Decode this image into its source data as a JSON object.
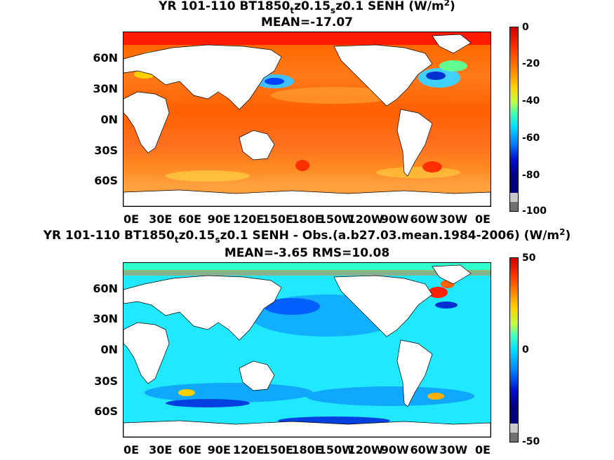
{
  "panels": [
    {
      "title_parts": [
        "YR 101-110 BT1850",
        "t",
        "z0.15",
        "s",
        "z0.1  SENH (W/m",
        "2",
        ")"
      ],
      "subtitle": "MEAN=-17.07",
      "colorbar_ticks": [
        "0",
        "-20",
        "-40",
        "-60",
        "-80",
        "-100"
      ]
    },
    {
      "title_parts": [
        "YR 101-110 BT1850",
        "t",
        "z0.15",
        "s",
        "z0.1 SENH - Obs.(a.b27.03.mean.1984-2006) (W/m",
        "2",
        ")"
      ],
      "subtitle": "MEAN=-3.65 RMS=10.08",
      "colorbar_ticks": [
        "50",
        "0",
        "-50"
      ]
    }
  ],
  "lat_ticks": [
    "60N",
    "30N",
    "0N",
    "30S",
    "60S"
  ],
  "lon_ticks": [
    "0E",
    "30E",
    "60E",
    "90E",
    "120E",
    "150E",
    "180E",
    "150W",
    "120W",
    "90W",
    "60W",
    "30W",
    "0E"
  ],
  "chart_data": [
    {
      "type": "heatmap",
      "title": "YR 101-110 BT1850tz0.15sz0.1  SENH (W/m2)",
      "subtitle": "MEAN=-17.07",
      "field": "SENH",
      "units": "W/m2",
      "mean": -17.07,
      "color_range": [
        -100,
        0
      ],
      "colorbar_ticks": [
        0,
        -20,
        -40,
        -60,
        -80,
        -100
      ],
      "colormap": [
        "#7f0000",
        "#ff0000",
        "#ff8000",
        "#ffd000",
        "#c0ff40",
        "#40ffc0",
        "#00d0ff",
        "#0060ff",
        "#0000c0",
        "#00007f"
      ],
      "x_axis": "longitude 0E to 0E",
      "y_axis": "latitude 90S to 90N",
      "grid": false
    },
    {
      "type": "heatmap",
      "title": "YR 101-110 BT1850tz0.15sz0.1 SENH - Obs.(a.b27.03.mean.1984-2006) (W/m2)",
      "subtitle": "MEAN=-3.65 RMS=10.08",
      "field": "SENH bias",
      "units": "W/m2",
      "mean": -3.65,
      "rms": 10.08,
      "color_range": [
        -50,
        50
      ],
      "colorbar_ticks": [
        50,
        0,
        -50
      ],
      "colormap": [
        "#7f0000",
        "#ff0000",
        "#ff8000",
        "#ffff00",
        "#80ff80",
        "#00ffff",
        "#00a0ff",
        "#0040ff",
        "#0000c0",
        "#00007f"
      ],
      "x_axis": "longitude 0E to 0E",
      "y_axis": "latitude 90S to 90N",
      "grid": false
    }
  ]
}
